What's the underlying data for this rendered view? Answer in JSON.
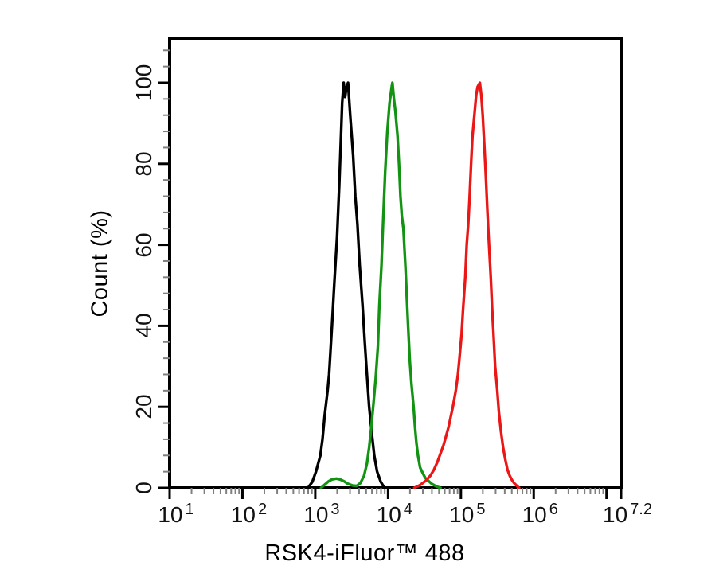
{
  "figure": {
    "background_color": "#ffffff",
    "frame_color": "#000000"
  },
  "chart_data": {
    "type": "line",
    "chart_kind": "flow-cytometry-overlay-histogram",
    "title": "",
    "x_axis": {
      "label": "RSK4-iFluor™ 488",
      "scale": "log10",
      "range_exponents": [
        1,
        7.2
      ],
      "major_tick_exponents": [
        1,
        2,
        3,
        4,
        5,
        6,
        7,
        7.2
      ],
      "minor_ticks": "log sub-decades 2-9 per decade",
      "major_tick_color": "#000000",
      "minor_tick_color": "#808080",
      "tick_labels": [
        {
          "base": "10",
          "exponent": "1",
          "at_exponent": 1
        },
        {
          "base": "10",
          "exponent": "2",
          "at_exponent": 2
        },
        {
          "base": "10",
          "exponent": "3",
          "at_exponent": 3
        },
        {
          "base": "10",
          "exponent": "4",
          "at_exponent": 4
        },
        {
          "base": "10",
          "exponent": "5",
          "at_exponent": 5
        },
        {
          "base": "10",
          "exponent": "6",
          "at_exponent": 6
        },
        {
          "base": "10",
          "exponent": "7.2",
          "at_exponent": 7.2
        }
      ]
    },
    "y_axis": {
      "label": "Count (%)",
      "range": [
        0,
        100
      ],
      "major_ticks": [
        0,
        20,
        40,
        60,
        80,
        100
      ],
      "minor_tick_step": 4,
      "axis_top_percent": 111,
      "major_tick_color": "#000000",
      "minor_tick_color": "#808080"
    },
    "grid": false,
    "legend": "none",
    "series": [
      {
        "name": "black",
        "color": "#000000",
        "peak_exponent": 3.43,
        "peak_value_approx": 2700,
        "peak_percent": 100,
        "points_exp_pct": [
          [
            2.9,
            0
          ],
          [
            2.96,
            1.5
          ],
          [
            3.01,
            4
          ],
          [
            3.07,
            8
          ],
          [
            3.1,
            12
          ],
          [
            3.13,
            18
          ],
          [
            3.17,
            24
          ],
          [
            3.19,
            28
          ],
          [
            3.23,
            40
          ],
          [
            3.26,
            50
          ],
          [
            3.3,
            62
          ],
          [
            3.33,
            75
          ],
          [
            3.35,
            85
          ],
          [
            3.37,
            95
          ],
          [
            3.39,
            100
          ],
          [
            3.41,
            96.5
          ],
          [
            3.43,
            99
          ],
          [
            3.45,
            100
          ],
          [
            3.48,
            92
          ],
          [
            3.52,
            82
          ],
          [
            3.55,
            72
          ],
          [
            3.58,
            65
          ],
          [
            3.61,
            55
          ],
          [
            3.65,
            45
          ],
          [
            3.68,
            36
          ],
          [
            3.71,
            28
          ],
          [
            3.74,
            20
          ],
          [
            3.78,
            13
          ],
          [
            3.81,
            8
          ],
          [
            3.85,
            4
          ],
          [
            3.9,
            1.5
          ],
          [
            3.95,
            0
          ]
        ]
      },
      {
        "name": "green",
        "color": "#129312",
        "peak_exponent": 4.06,
        "peak_value_approx": 11500,
        "peak_percent": 100,
        "points_exp_pct": [
          [
            3.08,
            0
          ],
          [
            3.13,
            0.8
          ],
          [
            3.18,
            1.6
          ],
          [
            3.23,
            2.1
          ],
          [
            3.29,
            2.3
          ],
          [
            3.34,
            2.1
          ],
          [
            3.4,
            1.6
          ],
          [
            3.45,
            1.0
          ],
          [
            3.51,
            0.6
          ],
          [
            3.57,
            0.5
          ],
          [
            3.62,
            1.2
          ],
          [
            3.67,
            3
          ],
          [
            3.71,
            6
          ],
          [
            3.74,
            10
          ],
          [
            3.77,
            15
          ],
          [
            3.8,
            21
          ],
          [
            3.83,
            27
          ],
          [
            3.86,
            35
          ],
          [
            3.88,
            45
          ],
          [
            3.91,
            55
          ],
          [
            3.93,
            65
          ],
          [
            3.96,
            78
          ],
          [
            3.99,
            88
          ],
          [
            4.02,
            95
          ],
          [
            4.05,
            99
          ],
          [
            4.06,
            100
          ],
          [
            4.08,
            96
          ],
          [
            4.1,
            93
          ],
          [
            4.13,
            87
          ],
          [
            4.15,
            80
          ],
          [
            4.17,
            72
          ],
          [
            4.19,
            67
          ],
          [
            4.21,
            64
          ],
          [
            4.24,
            54
          ],
          [
            4.26,
            46
          ],
          [
            4.28,
            38
          ],
          [
            4.3,
            31
          ],
          [
            4.32,
            26
          ],
          [
            4.35,
            20
          ],
          [
            4.37,
            15
          ],
          [
            4.39,
            11
          ],
          [
            4.41,
            8
          ],
          [
            4.44,
            5
          ],
          [
            4.48,
            3.5
          ],
          [
            4.51,
            2.5
          ],
          [
            4.55,
            1.8
          ],
          [
            4.6,
            1
          ],
          [
            4.66,
            0.4
          ],
          [
            4.72,
            0
          ]
        ]
      },
      {
        "name": "red",
        "color": "#eb1717",
        "peak_exponent": 5.26,
        "peak_value_approx": 182000,
        "peak_percent": 100,
        "points_exp_pct": [
          [
            4.36,
            0
          ],
          [
            4.44,
            0.7
          ],
          [
            4.52,
            1.8
          ],
          [
            4.58,
            3
          ],
          [
            4.63,
            4.5
          ],
          [
            4.68,
            6.5
          ],
          [
            4.72,
            8.5
          ],
          [
            4.76,
            10.5
          ],
          [
            4.8,
            13
          ],
          [
            4.83,
            15
          ],
          [
            4.86,
            17.5
          ],
          [
            4.89,
            20
          ],
          [
            4.93,
            24
          ],
          [
            4.96,
            28
          ],
          [
            4.98,
            32
          ],
          [
            5.01,
            38
          ],
          [
            5.03,
            44
          ],
          [
            5.06,
            52
          ],
          [
            5.08,
            60
          ],
          [
            5.1,
            65
          ],
          [
            5.12,
            72
          ],
          [
            5.14,
            80
          ],
          [
            5.16,
            87
          ],
          [
            5.19,
            93
          ],
          [
            5.21,
            97
          ],
          [
            5.23,
            99
          ],
          [
            5.26,
            100
          ],
          [
            5.28,
            97
          ],
          [
            5.3,
            92
          ],
          [
            5.32,
            85
          ],
          [
            5.34,
            78
          ],
          [
            5.36,
            70
          ],
          [
            5.38,
            62
          ],
          [
            5.41,
            52
          ],
          [
            5.43,
            44
          ],
          [
            5.45,
            37
          ],
          [
            5.47,
            30
          ],
          [
            5.5,
            24
          ],
          [
            5.52,
            19
          ],
          [
            5.55,
            14
          ],
          [
            5.58,
            10
          ],
          [
            5.61,
            7
          ],
          [
            5.64,
            4.5
          ],
          [
            5.67,
            3
          ],
          [
            5.7,
            2
          ],
          [
            5.73,
            1.2
          ],
          [
            5.77,
            0.5
          ],
          [
            5.8,
            0
          ]
        ]
      }
    ]
  }
}
